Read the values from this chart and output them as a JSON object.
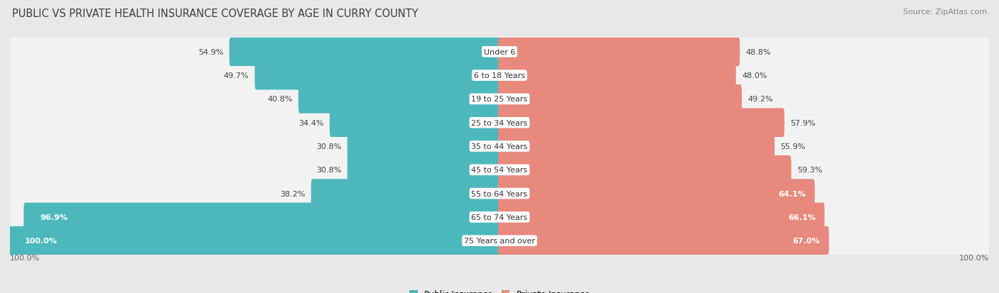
{
  "title": "PUBLIC VS PRIVATE HEALTH INSURANCE COVERAGE BY AGE IN CURRY COUNTY",
  "source": "Source: ZipAtlas.com",
  "categories": [
    "Under 6",
    "6 to 18 Years",
    "19 to 25 Years",
    "25 to 34 Years",
    "35 to 44 Years",
    "45 to 54 Years",
    "55 to 64 Years",
    "65 to 74 Years",
    "75 Years and over"
  ],
  "public_values": [
    54.9,
    49.7,
    40.8,
    34.4,
    30.8,
    30.8,
    38.2,
    96.9,
    100.0
  ],
  "private_values": [
    48.8,
    48.0,
    49.2,
    57.9,
    55.9,
    59.3,
    64.1,
    66.1,
    67.0
  ],
  "public_color": "#4db8bc",
  "private_color": "#e8897e",
  "bg_color": "#e8e8e8",
  "row_bg_color": "#f2f2f2",
  "bar_bg_color": "#e0e0e0",
  "title_fontsize": 10.5,
  "source_fontsize": 8,
  "label_fontsize": 8,
  "category_fontsize": 8,
  "legend_fontsize": 8.5,
  "max_value": 100.0,
  "white_label_threshold_pub": 80.0,
  "white_label_threshold_priv": 60.0
}
